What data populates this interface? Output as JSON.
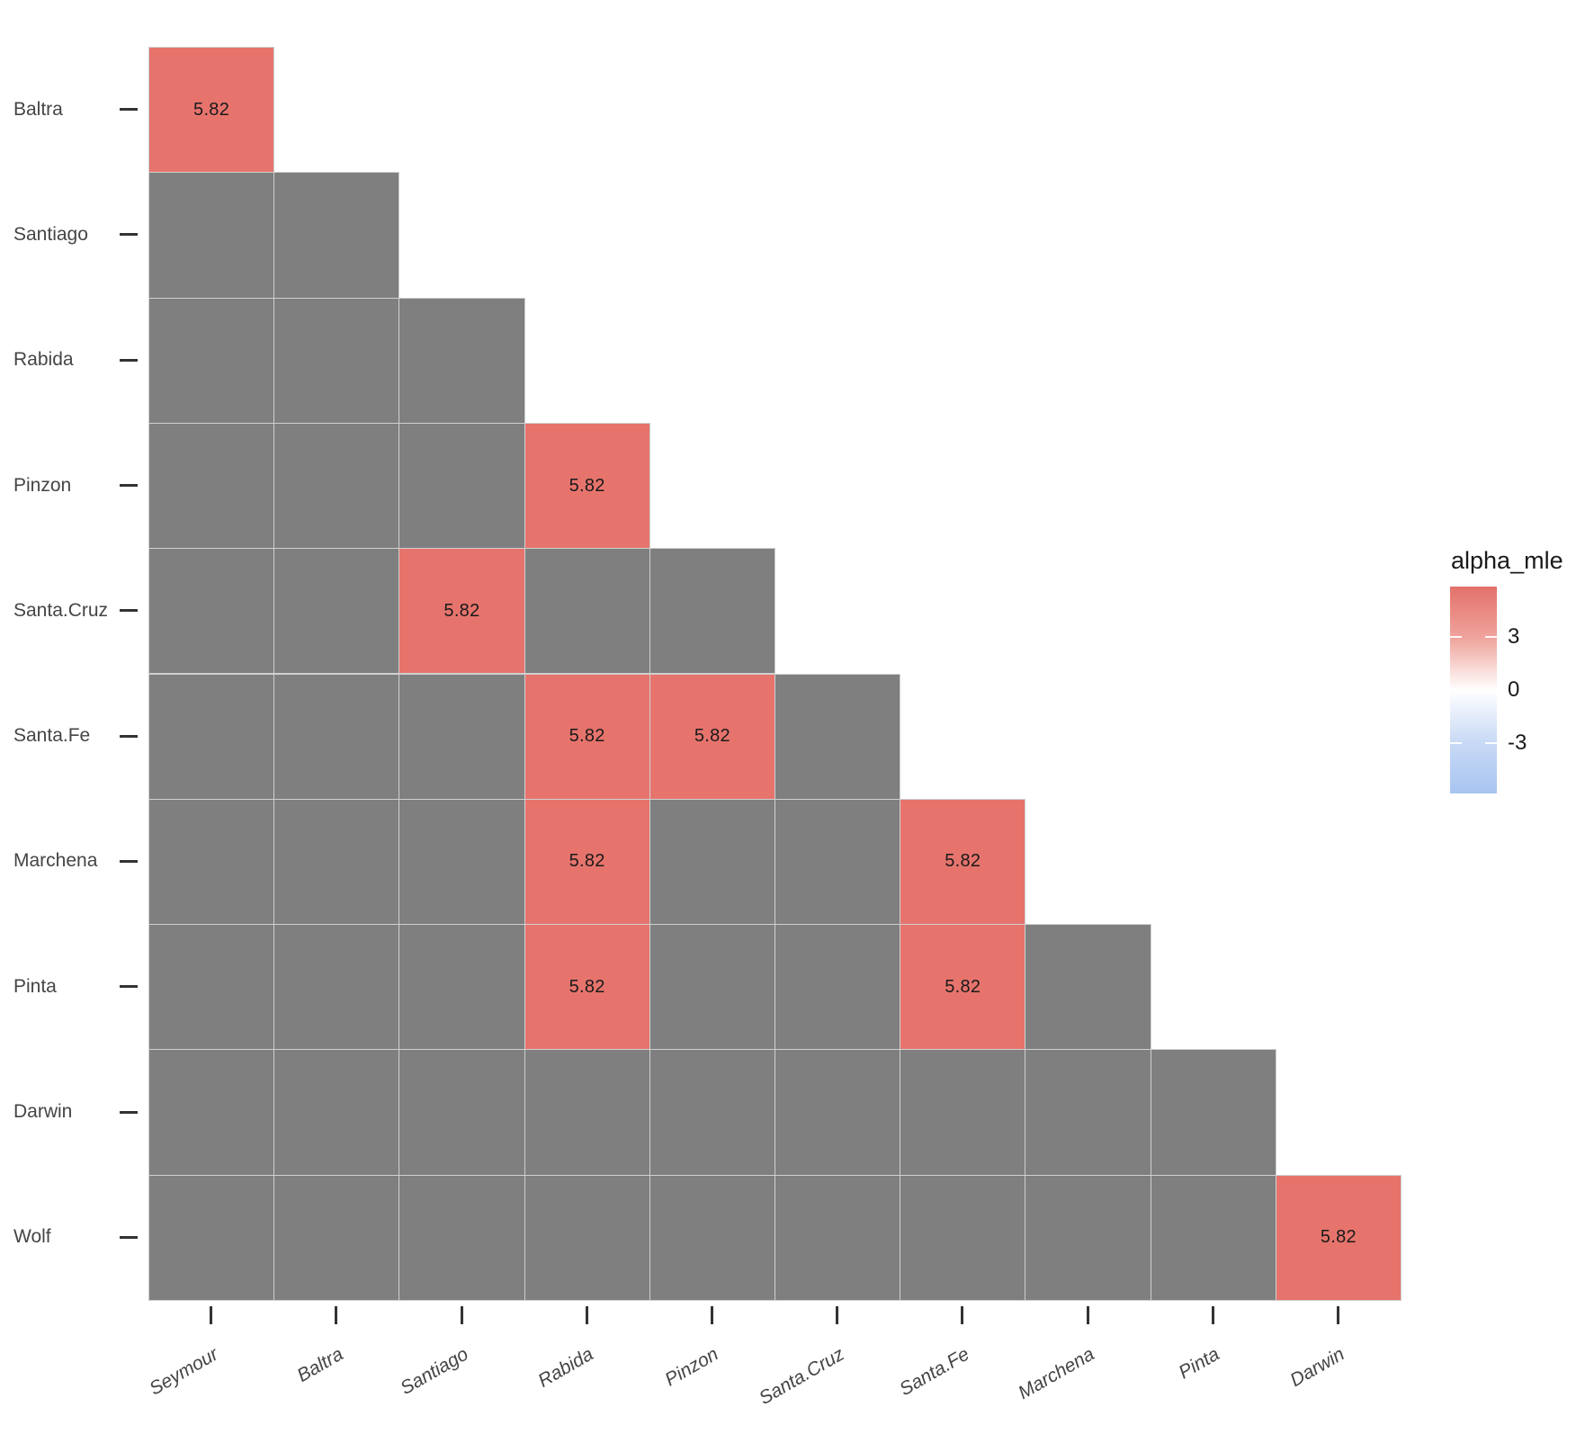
{
  "chart_data": {
    "type": "heatmap",
    "title": "",
    "x_categories": [
      "Seymour",
      "Baltra",
      "Santiago",
      "Rabida",
      "Pinzon",
      "Santa.Cruz",
      "Santa.Fe",
      "Marchena",
      "Pinta",
      "Darwin"
    ],
    "y_categories": [
      "Baltra",
      "Santiago",
      "Rabida",
      "Pinzon",
      "Santa.Cruz",
      "Santa.Fe",
      "Marchena",
      "Pinta",
      "Darwin",
      "Wolf"
    ],
    "shape": "lower-triangle",
    "rows": [
      {
        "name": "Baltra",
        "cells": [
          5.82
        ]
      },
      {
        "name": "Santiago",
        "cells": [
          null,
          null
        ]
      },
      {
        "name": "Rabida",
        "cells": [
          null,
          null,
          null
        ]
      },
      {
        "name": "Pinzon",
        "cells": [
          null,
          null,
          null,
          5.82
        ]
      },
      {
        "name": "Santa.Cruz",
        "cells": [
          null,
          null,
          5.82,
          null,
          null
        ]
      },
      {
        "name": "Santa.Fe",
        "cells": [
          null,
          null,
          null,
          5.82,
          5.82,
          null
        ]
      },
      {
        "name": "Marchena",
        "cells": [
          null,
          null,
          null,
          5.82,
          null,
          null,
          5.82
        ]
      },
      {
        "name": "Pinta",
        "cells": [
          null,
          null,
          null,
          5.82,
          null,
          null,
          5.82,
          null
        ]
      },
      {
        "name": "Darwin",
        "cells": [
          null,
          null,
          null,
          null,
          null,
          null,
          null,
          null,
          null
        ]
      },
      {
        "name": "Wolf",
        "cells": [
          null,
          null,
          null,
          null,
          null,
          null,
          null,
          null,
          null,
          5.82
        ]
      }
    ],
    "cell_value_label": "5.82",
    "na_color": "#7F7F7F",
    "cell_fill_high": "#E6746D",
    "grid_line_color": "#D0D0D0",
    "axis_text_color": "#454545",
    "legend": {
      "title": "alpha_mle",
      "ticks": [
        "3",
        "0",
        "-3"
      ],
      "tick_values": [
        3,
        0,
        -3
      ],
      "domain_max": 5.82,
      "domain_min": -5.82,
      "gradient_stops": [
        "#E4716B",
        "#EFA49D",
        "#FFFFFF",
        "#C9DAF5",
        "#A7C5F1"
      ]
    }
  }
}
